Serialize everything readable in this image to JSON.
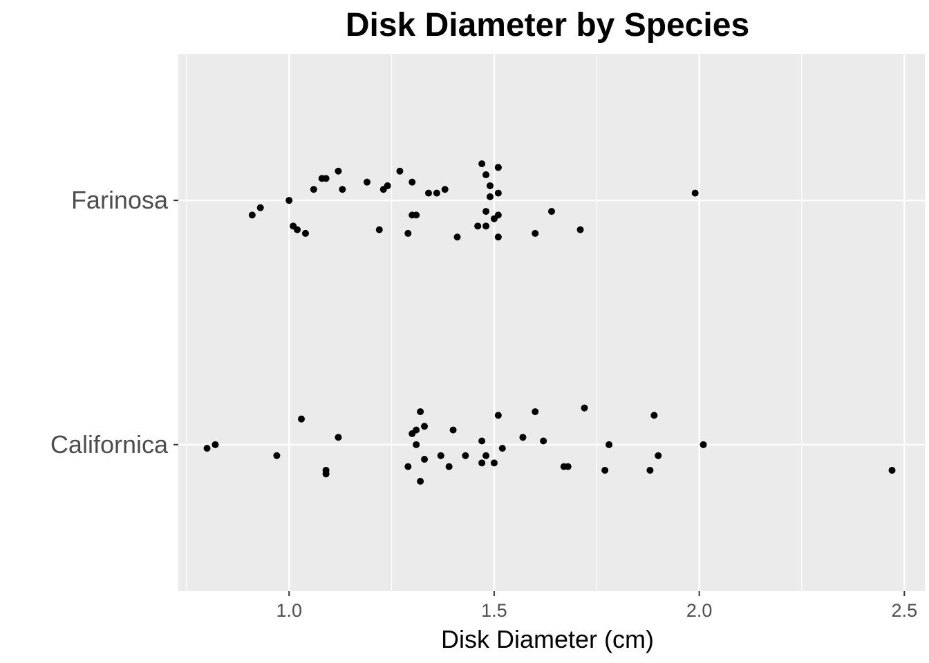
{
  "chart_data": {
    "type": "scatter",
    "title": "Disk Diameter by Species",
    "xlabel": "Disk Diameter (cm)",
    "ylabel": "",
    "xlim": [
      0.73,
      2.55
    ],
    "x_ticks": [
      {
        "value": 1.0,
        "label": "1.0"
      },
      {
        "value": 1.5,
        "label": "1.5"
      },
      {
        "value": 2.0,
        "label": "2.0"
      },
      {
        "value": 2.5,
        "label": "2.5"
      }
    ],
    "categories": [
      "Californica",
      "Farinosa"
    ],
    "grid": true,
    "legend": "none",
    "background": "#ebebeb",
    "point_color": "#000000",
    "series": [
      {
        "category": "Farinosa",
        "points": [
          [
            0.91,
            -0.04
          ],
          [
            0.93,
            -0.02
          ],
          [
            1.0,
            0.0
          ],
          [
            1.01,
            -0.07
          ],
          [
            1.02,
            -0.08
          ],
          [
            1.04,
            -0.09
          ],
          [
            1.06,
            0.03
          ],
          [
            1.08,
            0.06
          ],
          [
            1.09,
            0.06
          ],
          [
            1.12,
            0.08
          ],
          [
            1.13,
            0.03
          ],
          [
            1.19,
            0.05
          ],
          [
            1.22,
            -0.08
          ],
          [
            1.23,
            0.03
          ],
          [
            1.24,
            0.04
          ],
          [
            1.27,
            0.08
          ],
          [
            1.29,
            -0.09
          ],
          [
            1.3,
            0.05
          ],
          [
            1.3,
            -0.04
          ],
          [
            1.31,
            -0.04
          ],
          [
            1.34,
            0.02
          ],
          [
            1.36,
            0.02
          ],
          [
            1.38,
            0.03
          ],
          [
            1.41,
            -0.1
          ],
          [
            1.46,
            -0.07
          ],
          [
            1.47,
            0.1
          ],
          [
            1.48,
            -0.07
          ],
          [
            1.48,
            -0.03
          ],
          [
            1.48,
            0.07
          ],
          [
            1.49,
            0.04
          ],
          [
            1.49,
            0.01
          ],
          [
            1.5,
            -0.05
          ],
          [
            1.51,
            0.09
          ],
          [
            1.51,
            0.09
          ],
          [
            1.51,
            0.02
          ],
          [
            1.51,
            -0.1
          ],
          [
            1.51,
            -0.04
          ],
          [
            1.6,
            -0.09
          ],
          [
            1.64,
            -0.03
          ],
          [
            1.71,
            -0.08
          ],
          [
            1.99,
            0.02
          ]
        ]
      },
      {
        "category": "Californica",
        "points": [
          [
            0.8,
            -0.01
          ],
          [
            0.82,
            0.0
          ],
          [
            0.97,
            -0.03
          ],
          [
            1.03,
            0.07
          ],
          [
            1.09,
            -0.08
          ],
          [
            1.09,
            -0.07
          ],
          [
            1.12,
            0.02
          ],
          [
            1.29,
            -0.06
          ],
          [
            1.3,
            0.03
          ],
          [
            1.31,
            0.0
          ],
          [
            1.31,
            0.04
          ],
          [
            1.32,
            0.09
          ],
          [
            1.32,
            -0.1
          ],
          [
            1.33,
            -0.04
          ],
          [
            1.33,
            0.05
          ],
          [
            1.37,
            -0.03
          ],
          [
            1.39,
            -0.06
          ],
          [
            1.4,
            0.04
          ],
          [
            1.43,
            -0.03
          ],
          [
            1.47,
            0.01
          ],
          [
            1.47,
            -0.05
          ],
          [
            1.48,
            -0.03
          ],
          [
            1.5,
            -0.05
          ],
          [
            1.51,
            0.08
          ],
          [
            1.52,
            -0.01
          ],
          [
            1.57,
            0.02
          ],
          [
            1.6,
            0.09
          ],
          [
            1.62,
            0.01
          ],
          [
            1.67,
            -0.06
          ],
          [
            1.68,
            -0.06
          ],
          [
            1.72,
            0.1
          ],
          [
            1.77,
            -0.07
          ],
          [
            1.78,
            0.0
          ],
          [
            1.88,
            -0.07
          ],
          [
            1.89,
            0.08
          ],
          [
            1.9,
            -0.03
          ],
          [
            2.01,
            0.0
          ],
          [
            2.47,
            -0.07
          ]
        ]
      }
    ]
  }
}
